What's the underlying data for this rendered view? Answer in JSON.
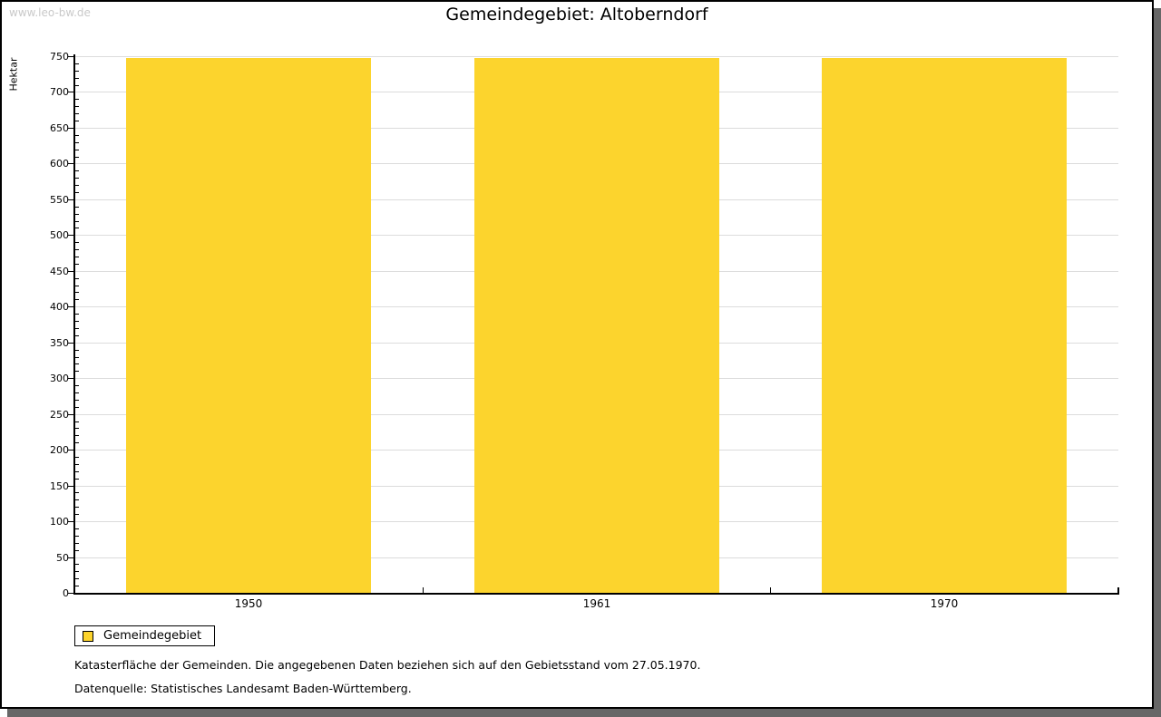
{
  "watermark": "www.leo-bw.de",
  "title": "Gemeindegebiet: Altoberndorf",
  "chart_data": {
    "type": "bar",
    "title": "Gemeindegebiet: Altoberndorf",
    "categories": [
      "1950",
      "1961",
      "1970"
    ],
    "series": [
      {
        "name": "Gemeindegebiet",
        "values": [
          747,
          747,
          747
        ]
      }
    ],
    "xlabel": "",
    "ylabel": "Hektar",
    "ylim": [
      0,
      750
    ],
    "y_major_step": 50,
    "y_minor_step": 10,
    "y_tick_labels": [
      "0",
      "50",
      "100",
      "150",
      "200",
      "250",
      "300",
      "350",
      "400",
      "450",
      "500",
      "550",
      "600",
      "650",
      "700",
      "750"
    ],
    "grid": true,
    "legend_position": "bottom-left"
  },
  "legend": {
    "items": [
      {
        "label": "Gemeindegebiet",
        "color": "#fcd42d"
      }
    ]
  },
  "footer": {
    "line1": "Katasterfläche der Gemeinden. Die angegebenen Daten beziehen sich auf den Gebietsstand vom 27.05.1970.",
    "line2": "Datenquelle: Statistisches Landesamt Baden-Württemberg."
  },
  "colors": {
    "bar": "#fcd42d",
    "grid": "#dcdcdc",
    "axis": "#000000",
    "watermark": "#c9c9c9",
    "frame_shadow": "#676767"
  }
}
